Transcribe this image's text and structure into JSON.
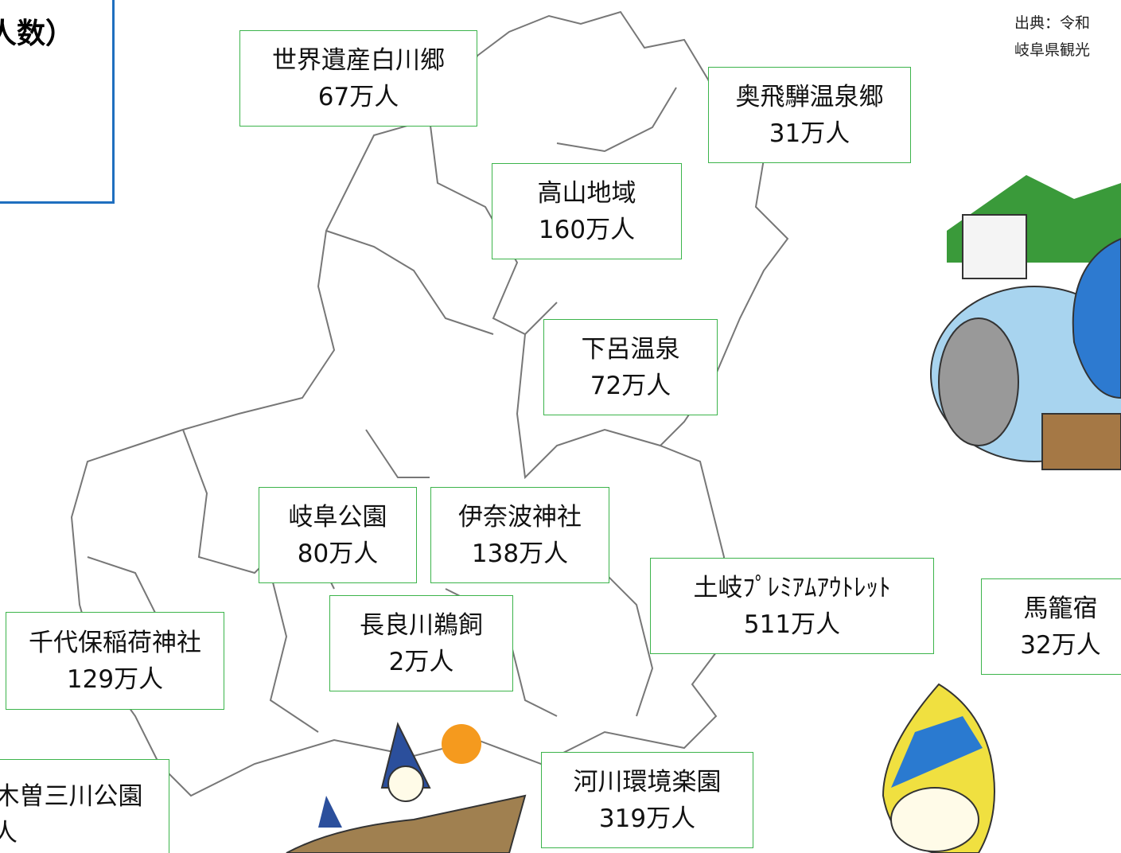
{
  "title": "人数）",
  "source": [
    "出典：令和",
    "岐阜県観光"
  ],
  "spots": [
    {
      "name": "世界遺産白川郷",
      "visitors": "67万人"
    },
    {
      "name": "奥飛騨温泉郷",
      "visitors": "31万人"
    },
    {
      "name": "高山地域",
      "visitors": "160万人"
    },
    {
      "name": "下呂温泉",
      "visitors": "72万人"
    },
    {
      "name": "岐阜公園",
      "visitors": "80万人"
    },
    {
      "name": "伊奈波神社",
      "visitors": "138万人"
    },
    {
      "name": "土岐ﾌﾟﾚﾐｱﾑｱｳﾄﾚｯﾄ",
      "visitors": "511万人"
    },
    {
      "name": "馬籠宿",
      "visitors": "32万人"
    },
    {
      "name": "長良川鵜飼",
      "visitors": "2万人"
    },
    {
      "name": "千代保稲荷神社",
      "visitors": "129万人"
    },
    {
      "name": "河川環境楽園",
      "visitors": "319万人"
    },
    {
      "name": "木曽三川公園",
      "visitors": "人"
    }
  ]
}
